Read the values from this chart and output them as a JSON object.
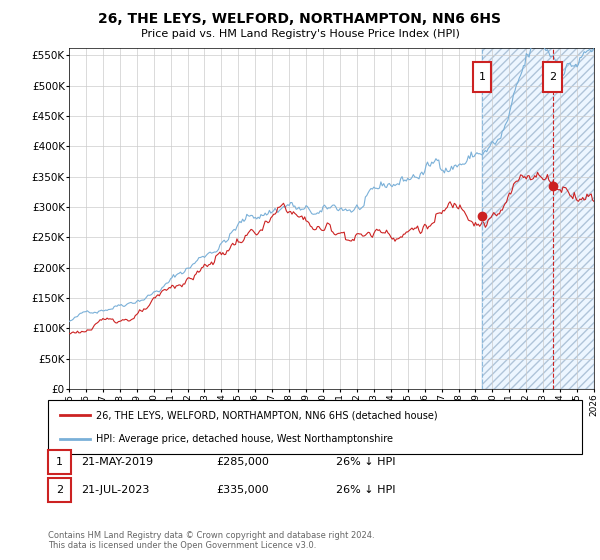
{
  "title": "26, THE LEYS, WELFORD, NORTHAMPTON, NN6 6HS",
  "subtitle": "Price paid vs. HM Land Registry's House Price Index (HPI)",
  "ylim": [
    0,
    562500
  ],
  "yticks": [
    0,
    50000,
    100000,
    150000,
    200000,
    250000,
    300000,
    350000,
    400000,
    450000,
    500000,
    550000
  ],
  "ytick_labels": [
    "£0",
    "£50K",
    "£100K",
    "£150K",
    "£200K",
    "£250K",
    "£300K",
    "£350K",
    "£400K",
    "£450K",
    "£500K",
    "£550K"
  ],
  "background_color": "#ffffff",
  "grid_color": "#cccccc",
  "hpi_color": "#7ab0d8",
  "price_color": "#cc2222",
  "vline1_color": "#7ab0d8",
  "vline2_color": "#cc2222",
  "annotation_box_color": "#cc2222",
  "hatch_fill_color": "#ddeeff",
  "legend_label_price": "26, THE LEYS, WELFORD, NORTHAMPTON, NN6 6HS (detached house)",
  "legend_label_hpi": "HPI: Average price, detached house, West Northamptonshire",
  "transaction1_label": "1",
  "transaction1_date": "21-MAY-2019",
  "transaction1_price": "£285,000",
  "transaction1_hpi": "26% ↓ HPI",
  "transaction2_label": "2",
  "transaction2_date": "21-JUL-2023",
  "transaction2_price": "£335,000",
  "transaction2_hpi": "26% ↓ HPI",
  "footnote": "Contains HM Land Registry data © Crown copyright and database right 2024.\nThis data is licensed under the Open Government Licence v3.0.",
  "transaction1_x": 2019.38,
  "transaction1_y": 285000,
  "transaction2_x": 2023.55,
  "transaction2_y": 335000,
  "xmin": 1995,
  "xmax": 2026
}
